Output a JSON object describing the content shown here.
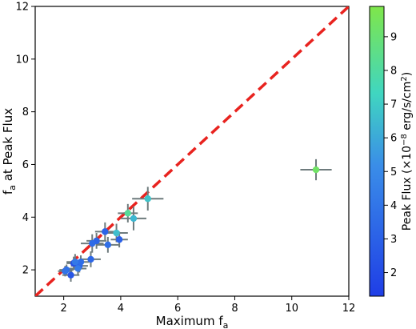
{
  "chart_data": {
    "type": "scatter",
    "title": "",
    "xlabel": "Maximum f",
    "xlabel_sub": "a",
    "ylabel": "f",
    "ylabel_sub": "a",
    "ylabel_rest": " at Peak Flux",
    "xlim": [
      1,
      12
    ],
    "ylim": [
      1,
      12
    ],
    "xticks": [
      2,
      4,
      6,
      8,
      10,
      12
    ],
    "yticks": [
      2,
      4,
      6,
      8,
      10,
      12
    ],
    "grid": false,
    "reference_line": {
      "x": [
        1,
        12
      ],
      "y": [
        1,
        12
      ],
      "color": "#e8231f",
      "style": "dashed"
    },
    "error_bar_color": "#6e7b7d",
    "colorbar": {
      "label_pre": "Peak Flux (×10",
      "label_exp": "−8",
      "label_post": " erg/s/cm",
      "label_sq": "2",
      "label_close": ")",
      "range": [
        1.3,
        9.9
      ],
      "ticks": [
        2,
        3,
        4,
        5,
        6,
        7,
        8,
        9
      ],
      "colors": [
        "#1f3ee6",
        "#3a8de8",
        "#40d6c0",
        "#7fe64a"
      ]
    },
    "points": [
      {
        "x": 10.85,
        "y": 5.8,
        "xerr": 0.55,
        "yerr": 0.4,
        "flux": 9.3
      },
      {
        "x": 4.95,
        "y": 4.7,
        "xerr": 0.55,
        "yerr": 0.45,
        "flux": 6.8
      },
      {
        "x": 4.45,
        "y": 3.95,
        "xerr": 0.45,
        "yerr": 0.45,
        "flux": 6.4
      },
      {
        "x": 4.25,
        "y": 4.15,
        "xerr": 0.35,
        "yerr": 0.35,
        "flux": 8.2
      },
      {
        "x": 3.85,
        "y": 3.4,
        "xerr": 0.4,
        "yerr": 0.35,
        "flux": 6.6
      },
      {
        "x": 3.95,
        "y": 3.15,
        "xerr": 0.3,
        "yerr": 0.3,
        "flux": 3.0
      },
      {
        "x": 3.45,
        "y": 3.45,
        "xerr": 0.35,
        "yerr": 0.35,
        "flux": 3.1
      },
      {
        "x": 3.55,
        "y": 2.95,
        "xerr": 0.4,
        "yerr": 0.3,
        "flux": 3.7
      },
      {
        "x": 3.15,
        "y": 3.1,
        "xerr": 0.35,
        "yerr": 0.3,
        "flux": 3.2
      },
      {
        "x": 3.0,
        "y": 3.0,
        "xerr": 0.4,
        "yerr": 0.35,
        "flux": 3.5
      },
      {
        "x": 2.95,
        "y": 2.4,
        "xerr": 0.35,
        "yerr": 0.3,
        "flux": 3.3
      },
      {
        "x": 2.6,
        "y": 2.3,
        "xerr": 0.3,
        "yerr": 0.25,
        "flux": 3.6
      },
      {
        "x": 2.4,
        "y": 2.3,
        "xerr": 0.3,
        "yerr": 0.3,
        "flux": 4.2
      },
      {
        "x": 2.55,
        "y": 2.15,
        "xerr": 0.3,
        "yerr": 0.25,
        "flux": 3.2
      },
      {
        "x": 2.5,
        "y": 2.05,
        "xerr": 0.3,
        "yerr": 0.25,
        "flux": 4.3
      },
      {
        "x": 2.1,
        "y": 2.0,
        "xerr": 0.25,
        "yerr": 0.2,
        "flux": 3.8
      },
      {
        "x": 2.25,
        "y": 1.8,
        "xerr": 0.3,
        "yerr": 0.25,
        "flux": 2.5
      },
      {
        "x": 2.35,
        "y": 2.25,
        "xerr": 0.25,
        "yerr": 0.25,
        "flux": 2.2
      },
      {
        "x": 2.05,
        "y": 1.95,
        "xerr": 0.25,
        "yerr": 0.2,
        "flux": 3.9
      }
    ]
  }
}
